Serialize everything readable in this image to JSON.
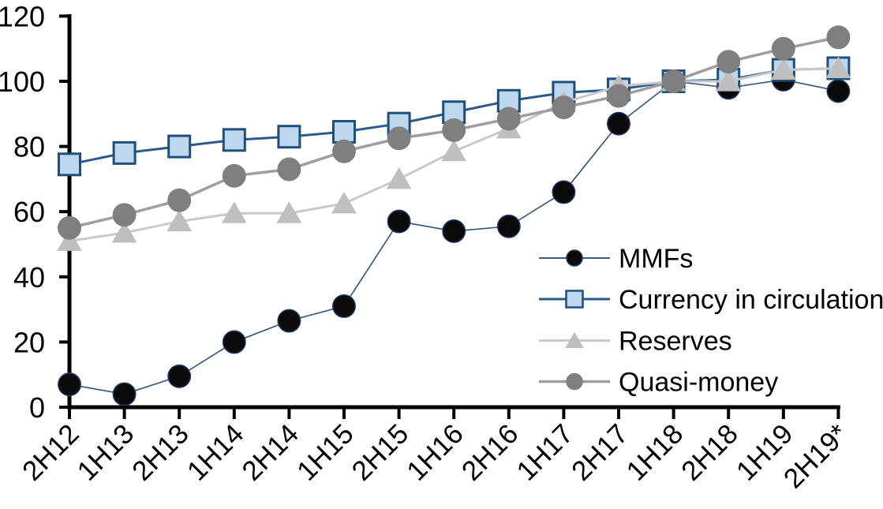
{
  "chart_data": {
    "type": "line",
    "title": "",
    "categories": [
      "2H12",
      "1H13",
      "2H13",
      "1H14",
      "2H14",
      "1H15",
      "2H15",
      "1H16",
      "2H16",
      "1H17",
      "2H17",
      "1H18",
      "2H18",
      "1H19",
      "2H19*"
    ],
    "yticks": [
      0,
      20,
      40,
      60,
      80,
      100,
      120
    ],
    "ylim": [
      0,
      120
    ],
    "grid": false,
    "legend_position": "inside-right",
    "axis_color": "#000000",
    "text_color": "#000000",
    "background_color": "#ffffff",
    "series": [
      {
        "name": "MMFs",
        "marker": "circle",
        "marker_fill": "#0a0a0a",
        "marker_stroke": "#1f3864",
        "line_color": "#3d5a80",
        "line_width": 1.7,
        "values": [
          7,
          4,
          9.5,
          20,
          26.5,
          31,
          57,
          54,
          55.5,
          66,
          87,
          100,
          98,
          100.5,
          97
        ]
      },
      {
        "name": "Currency in circulation",
        "marker": "square",
        "marker_fill": "#bdd7ee",
        "marker_stroke": "#1f4e79",
        "line_color": "#2a5a8c",
        "line_width": 3,
        "values": [
          74.5,
          78,
          80,
          82,
          83,
          84.5,
          87,
          90.5,
          94,
          96.5,
          97.5,
          100,
          100.5,
          103.5,
          104
        ]
      },
      {
        "name": "Reserves",
        "marker": "triangle",
        "marker_fill": "#bfbfbf",
        "marker_stroke": "#bfbfbf",
        "line_color": "#c9c9c9",
        "line_width": 3,
        "values": [
          51,
          53.5,
          57,
          59.5,
          59.5,
          62.5,
          70,
          78.5,
          85.5,
          93.5,
          98.5,
          100,
          100,
          103.5,
          104
        ]
      },
      {
        "name": "Quasi-money",
        "marker": "circle",
        "marker_fill": "#7f7f7f",
        "marker_stroke": "#7f7f7f",
        "line_color": "#9e9e9e",
        "line_width": 3.5,
        "values": [
          55,
          59,
          63.5,
          71,
          73,
          78.5,
          82.5,
          85,
          88.5,
          92,
          95.5,
          100,
          106,
          110,
          113.5
        ]
      }
    ]
  }
}
